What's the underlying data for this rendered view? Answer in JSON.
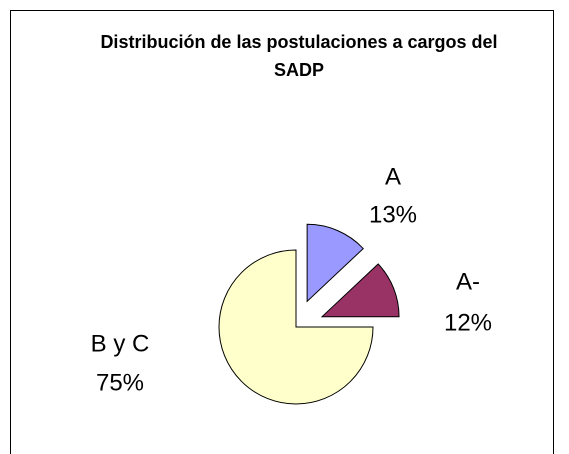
{
  "chart_data": {
    "type": "pie",
    "title": "Distribución de las postulaciones a cargos del SADP",
    "categories": [
      "A",
      "A-",
      "B y C"
    ],
    "values": [
      13,
      12,
      75
    ],
    "value_labels": [
      "13%",
      "12%",
      "75%"
    ],
    "colors": [
      "#9999ff",
      "#993366",
      "#ffffcc"
    ],
    "exploded": [
      "A",
      "A-"
    ]
  }
}
